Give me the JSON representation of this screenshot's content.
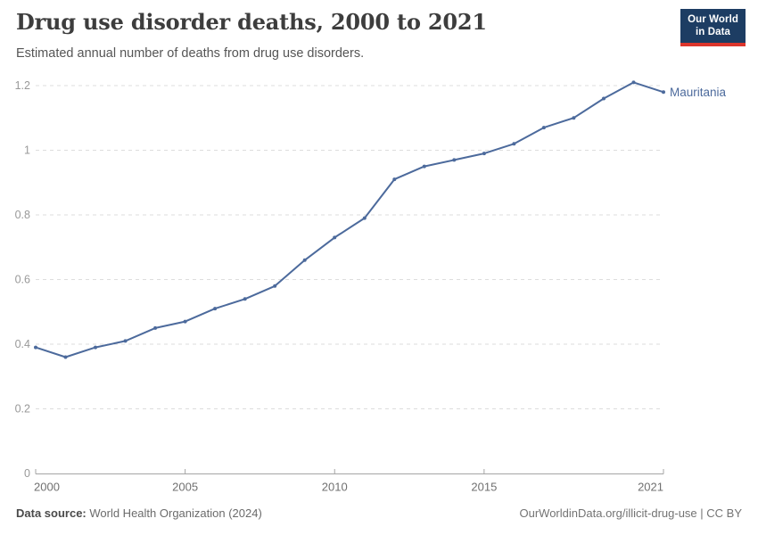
{
  "header": {
    "title": "Drug use disorder deaths, 2000 to 2021",
    "subtitle": "Estimated annual number of deaths from drug use disorders.",
    "logo": {
      "line1": "Our World",
      "line2": "in Data"
    }
  },
  "chart_data": {
    "type": "line",
    "title": "Drug use disorder deaths, 2000 to 2021",
    "xlabel": "",
    "ylabel": "",
    "x": [
      2000,
      2001,
      2002,
      2003,
      2004,
      2005,
      2006,
      2007,
      2008,
      2009,
      2010,
      2011,
      2012,
      2013,
      2014,
      2015,
      2016,
      2017,
      2018,
      2019,
      2020,
      2021
    ],
    "series": [
      {
        "name": "Mauritania",
        "color": "#4C6A9C",
        "values": [
          0.39,
          0.36,
          0.39,
          0.41,
          0.45,
          0.47,
          0.51,
          0.54,
          0.58,
          0.66,
          0.73,
          0.79,
          0.91,
          0.95,
          0.97,
          0.99,
          1.02,
          1.07,
          1.1,
          1.16,
          1.21,
          1.18
        ]
      }
    ],
    "ylim": [
      0,
      1.2
    ],
    "yticks": [
      0,
      0.2,
      0.4,
      0.6,
      0.8,
      1,
      1.2
    ],
    "ytick_labels": [
      "0",
      "0.2",
      "0.4",
      "0.6",
      "0.8",
      "1",
      "1.2"
    ],
    "xticks": [
      2000,
      2005,
      2010,
      2015,
      2021
    ],
    "xtick_labels": [
      "2000",
      "2005",
      "2010",
      "2015",
      "2021"
    ],
    "grid": true,
    "legend_position": "end-of-line"
  },
  "footer": {
    "source_label": "Data source:",
    "source_text": " World Health Organization (2024)",
    "link_text": "OurWorldinData.org/illicit-drug-use | CC BY"
  },
  "colors": {
    "line": "#4C6A9C",
    "logo_bg": "#1d3d63",
    "logo_accent": "#dc352c",
    "gridline": "#dddddd",
    "axis": "#a5a5a5"
  }
}
